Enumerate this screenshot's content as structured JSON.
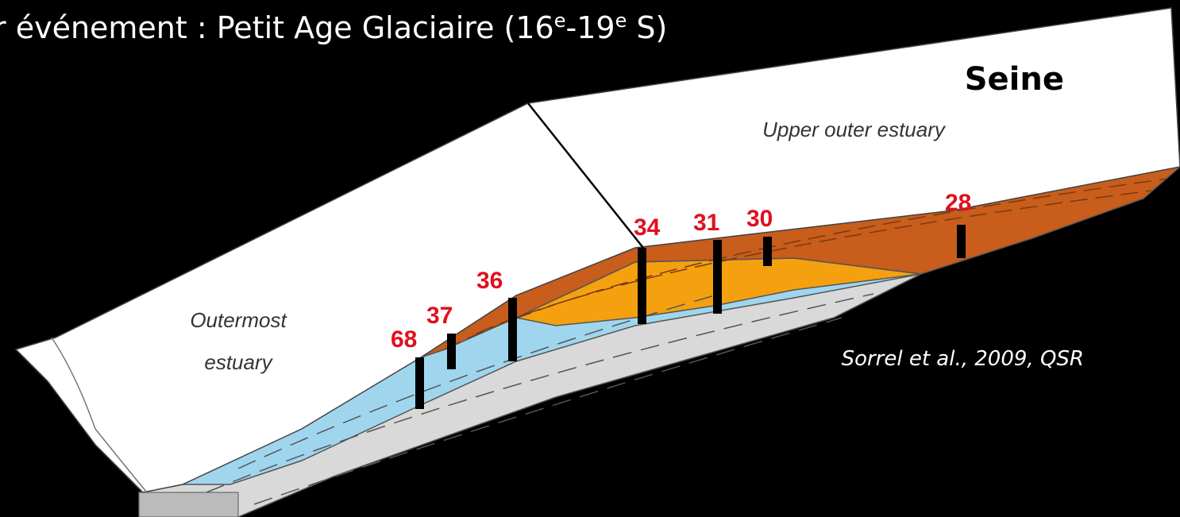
{
  "title": {
    "parts": [
      "r événement : Petit Age Glaciaire (16",
      "e",
      "-19",
      "e",
      " S)"
    ]
  },
  "river": "Seine",
  "zones": {
    "upper": "Upper outer estuary",
    "outer_line1": "Outermost",
    "outer_line2": "estuary"
  },
  "cores": [
    {
      "label": "68"
    },
    {
      "label": "37"
    },
    {
      "label": "36"
    },
    {
      "label": "34"
    },
    {
      "label": "31"
    },
    {
      "label": "30"
    },
    {
      "label": "28"
    }
  ],
  "citation": "Sorrel et al., 2009, QSR"
}
